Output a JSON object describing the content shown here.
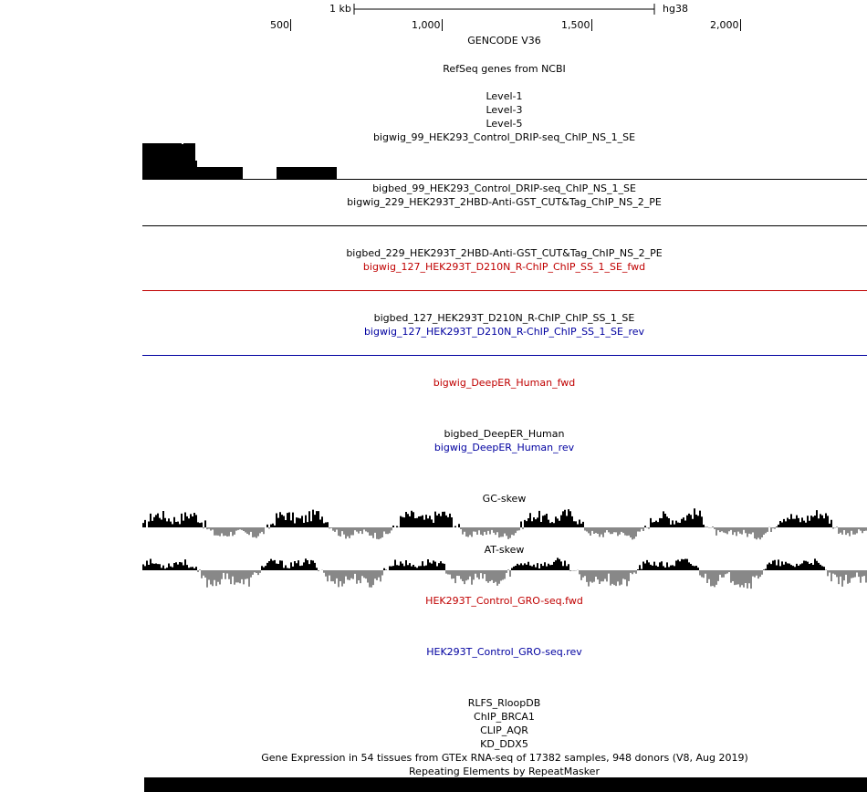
{
  "ruler": {
    "scale_label": "1 kb",
    "assembly": "hg38",
    "ticks": [
      "500",
      "1,000",
      "1,500",
      "2,000"
    ]
  },
  "tracks": {
    "gencode": "GENCODE V36",
    "refseq": "RefSeq genes from NCBI",
    "level1": "Level-1",
    "level3": "Level-3",
    "level5": "Level-5",
    "bigwig_99": "bigwig_99_HEK293_Control_DRIP-seq_ChIP_NS_1_SE",
    "bigbed_99": "bigbed_99_HEK293_Control_DRIP-seq_ChIP_NS_1_SE",
    "bigwig_229": "bigwig_229_HEK293T_2HBD-Anti-GST_CUT&Tag_ChIP_NS_2_PE",
    "bigbed_229": "bigbed_229_HEK293T_2HBD-Anti-GST_CUT&Tag_ChIP_NS_2_PE",
    "bigwig_127_fwd": "bigwig_127_HEK293T_D210N_R-ChIP_ChIP_SS_1_SE_fwd",
    "bigbed_127": "bigbed_127_HEK293T_D210N_R-ChIP_ChIP_SS_1_SE",
    "bigwig_127_rev": "bigwig_127_HEK293T_D210N_R-ChIP_ChIP_SS_1_SE_rev",
    "deeper_fwd": "bigwig_DeepER_Human_fwd",
    "deeper_bigbed": "bigbed_DeepER_Human",
    "deeper_rev": "bigwig_DeepER_Human_rev",
    "gc_skew": "GC-skew",
    "at_skew": "AT-skew",
    "gro_fwd": "HEK293T_Control_GRO-seq.fwd",
    "gro_rev": "HEK293T_Control_GRO-seq.rev",
    "rlfs": "RLFS_RloopDB",
    "chip_brca1": "ChIP_BRCA1",
    "clip_aqr": "CLIP_AQR",
    "kd_ddx5": "KD_DDX5",
    "gtex": "Gene Expression in 54 tissues from GTEx RNA-seq of 17382 samples, 948 donors (V8, Aug 2019)",
    "repeatmasker": "Repeating Elements by RepeatMasker"
  },
  "colors": {
    "fwd_strand": "#c00000",
    "rev_strand": "#0000a0",
    "positive_signal": "#000000",
    "negative_signal": "#888888"
  }
}
